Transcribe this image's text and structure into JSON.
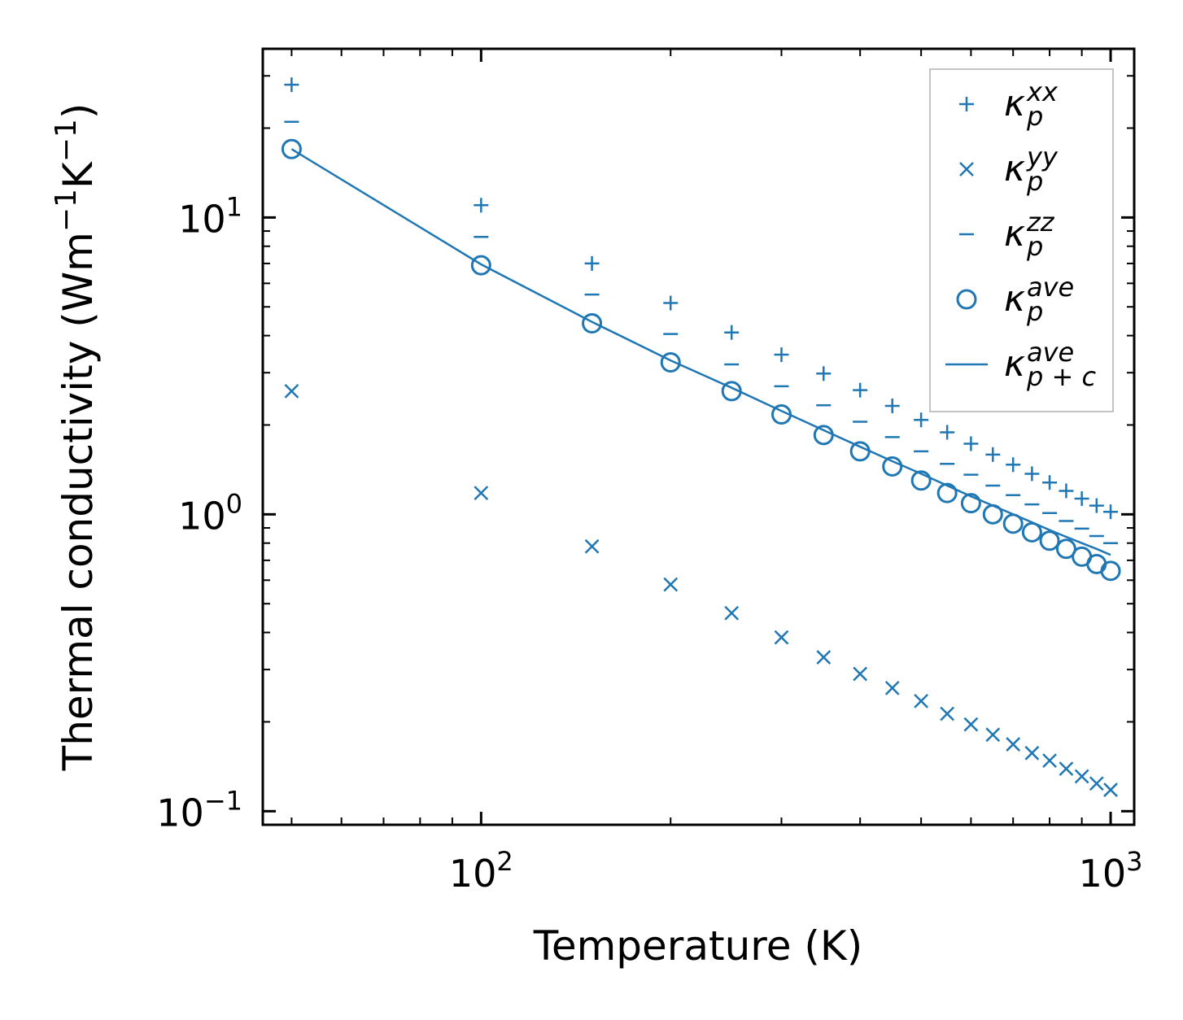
{
  "chart_data": {
    "type": "scatter",
    "xscale": "log",
    "yscale": "log",
    "xlabel": "Temperature (K)",
    "ylabel": {
      "prefix": "Thermal conductivity (Wm",
      "exp1": "−1",
      "mid": "K",
      "exp2": "−1",
      "suffix": ")"
    },
    "xlim": [
      45,
      1090
    ],
    "ylim": [
      0.09,
      37
    ],
    "grid": false,
    "legend_position": "top-right",
    "x_ticks": [
      {
        "value": 100,
        "base": "10",
        "exp": "2"
      },
      {
        "value": 1000,
        "base": "10",
        "exp": "3"
      }
    ],
    "y_ticks": [
      {
        "value": 0.1,
        "base": "10",
        "exp": "−1"
      },
      {
        "value": 1,
        "base": "10",
        "exp": "0"
      },
      {
        "value": 10,
        "base": "10",
        "exp": "1"
      }
    ],
    "x": [
      50,
      100,
      150,
      200,
      250,
      300,
      350,
      400,
      450,
      500,
      550,
      600,
      650,
      700,
      750,
      800,
      850,
      900,
      950,
      1000
    ],
    "series": [
      {
        "name": "kappa_p_xx",
        "label_symbol": "κ",
        "label_sup": "xx",
        "label_sub": "p",
        "marker": "plus",
        "color": "#1f77b4",
        "values": [
          28.0,
          11.0,
          7.0,
          5.15,
          4.1,
          3.45,
          2.98,
          2.62,
          2.32,
          2.08,
          1.89,
          1.73,
          1.59,
          1.47,
          1.37,
          1.28,
          1.2,
          1.13,
          1.07,
          1.02
        ]
      },
      {
        "name": "kappa_p_yy",
        "label_symbol": "κ",
        "label_sup": "yy",
        "label_sub": "p",
        "marker": "x",
        "color": "#1f77b4",
        "values": [
          2.6,
          1.18,
          0.78,
          0.58,
          0.465,
          0.385,
          0.33,
          0.29,
          0.26,
          0.235,
          0.213,
          0.196,
          0.181,
          0.168,
          0.157,
          0.148,
          0.139,
          0.131,
          0.124,
          0.118
        ]
      },
      {
        "name": "kappa_p_zz",
        "label_symbol": "κ",
        "label_sup": "zz",
        "label_sub": "p",
        "marker": "hline",
        "color": "#1f77b4",
        "values": [
          21.0,
          8.6,
          5.5,
          4.05,
          3.2,
          2.7,
          2.33,
          2.05,
          1.82,
          1.63,
          1.48,
          1.36,
          1.25,
          1.16,
          1.08,
          1.01,
          0.95,
          0.895,
          0.845,
          0.8
        ]
      },
      {
        "name": "kappa_p_ave",
        "label_symbol": "κ",
        "label_sup": "ave",
        "label_sub": "p",
        "marker": "circle",
        "color": "#1f77b4",
        "values": [
          17.0,
          6.9,
          4.4,
          3.25,
          2.6,
          2.17,
          1.85,
          1.63,
          1.45,
          1.3,
          1.18,
          1.09,
          1.0,
          0.93,
          0.87,
          0.815,
          0.765,
          0.72,
          0.68,
          0.645
        ]
      },
      {
        "name": "kappa_pc_ave",
        "label_symbol": "κ",
        "label_sup": "ave",
        "label_sub": "p + c",
        "marker": "line",
        "color": "#1f77b4",
        "values": [
          17.0,
          6.95,
          4.45,
          3.3,
          2.67,
          2.23,
          1.92,
          1.69,
          1.51,
          1.37,
          1.25,
          1.15,
          1.07,
          1.0,
          0.94,
          0.885,
          0.84,
          0.8,
          0.765,
          0.73
        ]
      }
    ]
  }
}
